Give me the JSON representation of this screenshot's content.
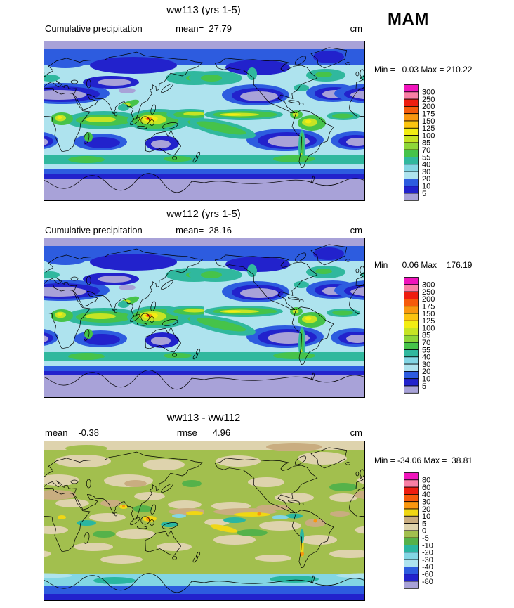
{
  "header": {
    "season": "MAM"
  },
  "panels": [
    {
      "id": "ww113",
      "title": "ww113 (yrs 1-5)",
      "left_label": "Cumulative precipitation",
      "center_label": "mean=  27.79",
      "unit_label": "cm",
      "minmax_label": "Min =   0.03 Max = 210.22",
      "colorbar_labels": [
        "300",
        "250",
        "200",
        "175",
        "150",
        "125",
        "100",
        "85",
        "70",
        "55",
        "40",
        "30",
        "20",
        "10",
        "5"
      ],
      "colorbar_colors": [
        "#f014bc",
        "#f97fa5",
        "#ee1d10",
        "#f55b0b",
        "#f9970f",
        "#fbc410",
        "#f2ed13",
        "#c6e424",
        "#8ed639",
        "#46c34a",
        "#30b89e",
        "#83d6e4",
        "#aee3ee",
        "#2d5cdf",
        "#2222cc",
        "#a8a2d8"
      ]
    },
    {
      "id": "ww112",
      "title": "ww112 (yrs 1-5)",
      "left_label": "Cumulative precipitation",
      "center_label": "mean=  28.16",
      "unit_label": "cm",
      "minmax_label": "Min =   0.06 Max = 176.19",
      "colorbar_labels": [
        "300",
        "250",
        "200",
        "175",
        "150",
        "125",
        "100",
        "85",
        "70",
        "55",
        "40",
        "30",
        "20",
        "10",
        "5"
      ],
      "colorbar_colors": [
        "#f014bc",
        "#f97fa5",
        "#ee1d10",
        "#f55b0b",
        "#f9970f",
        "#fbc410",
        "#f2ed13",
        "#c6e424",
        "#8ed639",
        "#46c34a",
        "#30b89e",
        "#83d6e4",
        "#aee3ee",
        "#2d5cdf",
        "#2222cc",
        "#a8a2d8"
      ]
    },
    {
      "id": "diff",
      "title": "ww113 - ww112",
      "left_label": "mean = -0.38",
      "center_label": "rmse =   4.96",
      "unit_label": "cm",
      "minmax_label": "Min = -34.06 Max =  38.81",
      "colorbar_labels": [
        "80",
        "60",
        "40",
        "30",
        "20",
        "10",
        "5",
        "0",
        "-5",
        "-10",
        "-20",
        "-30",
        "-40",
        "-60",
        "-80"
      ],
      "colorbar_colors": [
        "#f014bc",
        "#f97fa5",
        "#ee1d10",
        "#f55b0b",
        "#f9970f",
        "#f0d714",
        "#c9ad80",
        "#ded3ad",
        "#a2bf4e",
        "#55b24a",
        "#2ab6a0",
        "#83d6e4",
        "#aee3ee",
        "#2d5cdf",
        "#2222cc",
        "#a8a2d8"
      ]
    }
  ],
  "chart_data": [
    {
      "type": "heatmap",
      "subtype": "filled-contour global map",
      "title": "ww113 (yrs 1-5)",
      "variable": "Cumulative precipitation",
      "season": "MAM",
      "units": "cm",
      "mean": 27.79,
      "min": 0.03,
      "max": 210.22,
      "contour_levels": [
        5,
        10,
        20,
        30,
        40,
        55,
        70,
        85,
        100,
        125,
        150,
        175,
        200,
        250,
        300
      ],
      "projection": "equirectangular-global (0-360E, 90N-90S)",
      "legend_position": "right"
    },
    {
      "type": "heatmap",
      "subtype": "filled-contour global map",
      "title": "ww112 (yrs 1-5)",
      "variable": "Cumulative precipitation",
      "season": "MAM",
      "units": "cm",
      "mean": 28.16,
      "min": 0.06,
      "max": 176.19,
      "contour_levels": [
        5,
        10,
        20,
        30,
        40,
        55,
        70,
        85,
        100,
        125,
        150,
        175,
        200,
        250,
        300
      ],
      "projection": "equirectangular-global (0-360E, 90N-90S)",
      "legend_position": "right"
    },
    {
      "type": "heatmap",
      "subtype": "filled-contour global difference map",
      "title": "ww113 - ww112",
      "variable": "Cumulative precipitation difference (ww113 minus ww112)",
      "season": "MAM",
      "units": "cm",
      "mean": -0.38,
      "rmse": 4.96,
      "min": -34.06,
      "max": 38.81,
      "contour_levels": [
        -80,
        -60,
        -40,
        -30,
        -20,
        -10,
        -5,
        0,
        5,
        10,
        20,
        30,
        40,
        60,
        80
      ],
      "projection": "equirectangular-global (0-360E, 90N-90S)",
      "legend_position": "right"
    }
  ]
}
